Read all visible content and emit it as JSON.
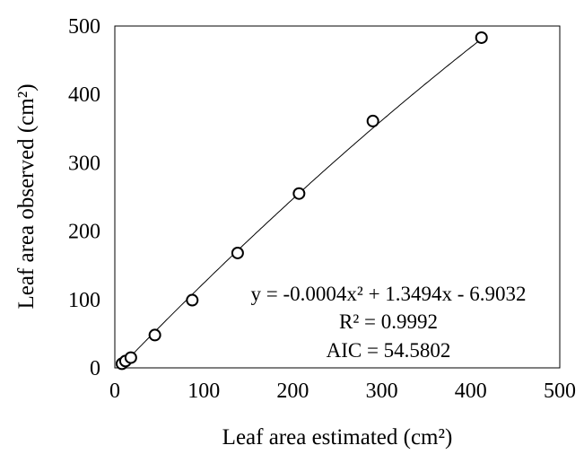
{
  "chart_data": {
    "type": "scatter",
    "title": "",
    "xlabel": "Leaf area estimated (cm²)",
    "ylabel": "Leaf area observed (cm²)",
    "xlim": [
      0,
      500
    ],
    "ylim": [
      0,
      500
    ],
    "xticks": [
      "0",
      "100",
      "200",
      "300",
      "400",
      "500"
    ],
    "yticks": [
      "0",
      "100",
      "200",
      "300",
      "400",
      "500"
    ],
    "grid": false,
    "legend": "none",
    "series": [
      {
        "marker": "open-circle",
        "points": [
          {
            "x": 8,
            "y": 6
          },
          {
            "x": 12,
            "y": 10
          },
          {
            "x": 18,
            "y": 15
          },
          {
            "x": 45,
            "y": 48
          },
          {
            "x": 87,
            "y": 99
          },
          {
            "x": 138,
            "y": 168
          },
          {
            "x": 207,
            "y": 255
          },
          {
            "x": 290,
            "y": 361
          },
          {
            "x": 412,
            "y": 483
          }
        ]
      }
    ],
    "trendline": {
      "type": "polynomial",
      "coefficients": [
        -0.0004,
        1.3494,
        -6.9032
      ],
      "x_range": [
        6,
        418
      ]
    },
    "annotations": [
      "y = -0.0004x² + 1.3494x - 6.9032",
      "R² = 0.9992",
      "AIC = 54.5802"
    ],
    "colors": {
      "marker": "#000000",
      "line": "#000000",
      "axes": "#000000"
    }
  }
}
